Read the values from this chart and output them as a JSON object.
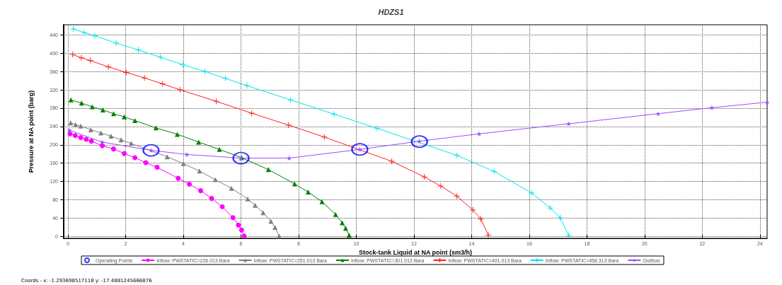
{
  "chart_data": {
    "type": "line",
    "title": "HDZS1",
    "xlabel": "Stock-tank Liquid at NA point (sm3/h)",
    "ylabel": "Pressure at NA point (barg)",
    "xlim": [
      -0.15,
      24.25
    ],
    "xticks": [
      0,
      2,
      4,
      6,
      8,
      10,
      12,
      14,
      16,
      18,
      20,
      22,
      24
    ],
    "ylim": [
      -4,
      462
    ],
    "yticks": [
      0,
      40,
      80,
      120,
      160,
      200,
      240,
      280,
      320,
      360,
      400,
      440
    ],
    "grid": true,
    "legend": "bottom",
    "annotations": [
      "Coords - x: -1.293698517118 y: -17.4881245666876"
    ],
    "series": [
      {
        "name": "Operating Points",
        "type": "scatter",
        "marker": "circle",
        "color": "#0000ff",
        "x": [
          2.88,
          6.0,
          10.12,
          12.19
        ],
        "values": [
          188,
          171,
          190,
          207
        ]
      },
      {
        "name": "Inflow: PWSTATIC=226.013 Bara",
        "marker": "circle",
        "color": "#ff00ff",
        "x": [
          0.07,
          0.25,
          0.44,
          0.63,
          0.81,
          1.19,
          1.58,
          1.95,
          2.32,
          2.7,
          3.09,
          3.82,
          4.21,
          4.6,
          4.98,
          5.35,
          5.72,
          5.91,
          6.02,
          6.11
        ],
        "values": [
          224,
          220,
          216,
          212,
          208,
          198,
          191,
          181,
          172,
          161,
          151,
          127,
          114,
          100,
          83,
          65,
          41,
          25,
          14,
          1
        ]
      },
      {
        "name": "Inflow: PWSTATIC=251.013 Bara",
        "marker": "triangle",
        "color": "#808080",
        "x": [
          0.09,
          0.26,
          0.44,
          0.79,
          1.14,
          1.49,
          1.84,
          2.19,
          3.44,
          4.0,
          4.56,
          5.11,
          5.67,
          6.23,
          6.49,
          6.77,
          7.04,
          7.18,
          7.32
        ],
        "values": [
          248,
          244,
          241,
          233,
          226,
          219,
          211,
          203,
          174,
          159,
          143,
          124,
          105,
          82,
          68,
          52,
          33,
          20,
          1
        ]
      },
      {
        "name": "Inflow: PWSTATIC=301.013 Bara",
        "marker": "triangle",
        "color": "#008000",
        "x": [
          0.1,
          0.47,
          0.84,
          1.21,
          1.58,
          1.95,
          2.32,
          3.05,
          3.79,
          4.53,
          5.25,
          6.02,
          6.95,
          7.86,
          8.33,
          8.81,
          9.28,
          9.51,
          9.63,
          9.75
        ],
        "values": [
          298,
          291,
          283,
          276,
          268,
          261,
          253,
          237,
          223,
          206,
          190,
          172,
          146,
          115,
          97,
          76,
          48,
          30,
          18,
          3
        ]
      },
      {
        "name": "Inflow: PWSTATIC=401.013 Bara",
        "marker": "cross",
        "color": "#ff2020",
        "x": [
          0.16,
          0.46,
          0.77,
          1.4,
          2.02,
          2.65,
          3.28,
          3.89,
          5.14,
          6.37,
          7.65,
          8.89,
          11.23,
          12.36,
          12.93,
          13.49,
          14.04,
          14.32,
          14.58
        ],
        "values": [
          397,
          390,
          384,
          370,
          358,
          346,
          333,
          320,
          295,
          269,
          243,
          217,
          164,
          130,
          110,
          88,
          58,
          38,
          3
        ]
      },
      {
        "name": "Inflow: PWSTATIC=458.313 Bara",
        "marker": "cross",
        "color": "#00e5ee",
        "x": [
          0.18,
          0.56,
          0.93,
          1.67,
          2.44,
          3.21,
          3.98,
          4.75,
          5.46,
          6.21,
          7.72,
          9.23,
          10.72,
          13.49,
          14.78,
          16.08,
          16.73,
          17.07,
          17.37
        ],
        "values": [
          453,
          445,
          438,
          422,
          407,
          391,
          375,
          360,
          345,
          329,
          298,
          267,
          236,
          177,
          142,
          95,
          62,
          41,
          2
        ]
      },
      {
        "name": "Outflow:",
        "marker": "star",
        "color": "#9b4dff",
        "x": [
          0.05,
          1.18,
          2.88,
          4.12,
          6.0,
          7.67,
          10.12,
          12.19,
          14.26,
          17.37,
          20.47,
          22.33,
          24.25
        ],
        "values": [
          232,
          206,
          188,
          179,
          171,
          171,
          190,
          208,
          224,
          246,
          268,
          281,
          293
        ]
      }
    ]
  }
}
